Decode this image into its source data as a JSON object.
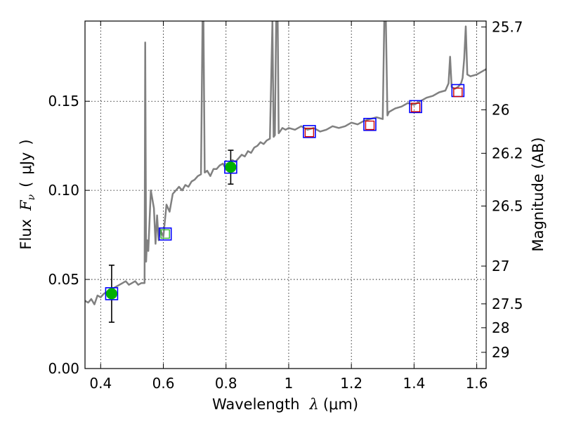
{
  "chart_data": {
    "type": "scatter",
    "title": "",
    "xlabel": {
      "prefix": "Wavelength",
      "symbol": "λ",
      "units": "(μm)"
    },
    "ylabel": {
      "prefix": "Flux",
      "symbol": "F",
      "subscript": "ν",
      "open": "(",
      "units": "μJy",
      "close": ")"
    },
    "y2label": "Magnitude (AB)",
    "xlim": [
      0.35,
      1.63
    ],
    "ylim": [
      0.0,
      0.195
    ],
    "grid": true,
    "x_ticks": [
      0.4,
      0.6,
      0.8,
      1.0,
      1.2,
      1.4,
      1.6
    ],
    "x_tick_labels": [
      "0.4",
      "0.6",
      "0.8",
      "1",
      "1.2",
      "1.4",
      "1.6"
    ],
    "y_ticks": [
      0.0,
      0.05,
      0.1,
      0.15
    ],
    "y_tick_labels": [
      "0.00",
      "0.05",
      "0.10",
      "0.15"
    ],
    "y2_ticks": [
      {
        "label": "25.7",
        "flux": 0.1917
      },
      {
        "label": "26",
        "flux": 0.1452
      },
      {
        "label": "26.2",
        "flux": 0.1208
      },
      {
        "label": "26.5",
        "flux": 0.0912
      },
      {
        "label": "27",
        "flux": 0.0575
      },
      {
        "label": "27.5",
        "flux": 0.0363
      },
      {
        "label": "28",
        "flux": 0.0229
      },
      {
        "label": "29",
        "flux": 0.0091
      }
    ],
    "series": [
      {
        "name": "model spectrum",
        "kind": "line",
        "color": "#808080",
        "x": [
          0.35,
          0.36,
          0.37,
          0.38,
          0.39,
          0.4,
          0.41,
          0.42,
          0.43,
          0.44,
          0.45,
          0.46,
          0.47,
          0.48,
          0.49,
          0.5,
          0.51,
          0.52,
          0.53,
          0.54,
          0.542,
          0.545,
          0.548,
          0.552,
          0.56,
          0.57,
          0.575,
          0.58,
          0.585,
          0.59,
          0.6,
          0.61,
          0.62,
          0.63,
          0.64,
          0.65,
          0.66,
          0.67,
          0.68,
          0.69,
          0.7,
          0.71,
          0.72,
          0.725,
          0.728,
          0.732,
          0.74,
          0.75,
          0.76,
          0.77,
          0.78,
          0.79,
          0.8,
          0.81,
          0.82,
          0.83,
          0.84,
          0.85,
          0.86,
          0.87,
          0.88,
          0.89,
          0.9,
          0.91,
          0.92,
          0.93,
          0.94,
          0.948,
          0.952,
          0.956,
          0.96,
          0.965,
          0.968,
          0.972,
          0.976,
          0.98,
          0.99,
          1.0,
          1.02,
          1.04,
          1.06,
          1.08,
          1.1,
          1.12,
          1.14,
          1.16,
          1.18,
          1.2,
          1.22,
          1.24,
          1.26,
          1.28,
          1.3,
          1.305,
          1.31,
          1.315,
          1.32,
          1.34,
          1.36,
          1.38,
          1.4,
          1.42,
          1.44,
          1.46,
          1.48,
          1.5,
          1.51,
          1.515,
          1.52,
          1.53,
          1.54,
          1.55,
          1.555,
          1.56,
          1.565,
          1.57,
          1.58,
          1.6,
          1.62,
          1.63
        ],
        "y": [
          0.038,
          0.037,
          0.039,
          0.036,
          0.041,
          0.04,
          0.042,
          0.043,
          0.044,
          0.045,
          0.046,
          0.047,
          0.048,
          0.049,
          0.047,
          0.048,
          0.049,
          0.047,
          0.048,
          0.048,
          0.183,
          0.06,
          0.072,
          0.066,
          0.1,
          0.09,
          0.07,
          0.086,
          0.072,
          0.078,
          0.074,
          0.092,
          0.088,
          0.098,
          0.1,
          0.102,
          0.1,
          0.103,
          0.102,
          0.105,
          0.106,
          0.108,
          0.109,
          0.195,
          0.195,
          0.11,
          0.111,
          0.108,
          0.112,
          0.112,
          0.114,
          0.115,
          0.112,
          0.114,
          0.117,
          0.116,
          0.118,
          0.12,
          0.119,
          0.122,
          0.121,
          0.124,
          0.125,
          0.127,
          0.126,
          0.128,
          0.129,
          0.195,
          0.13,
          0.131,
          0.195,
          0.195,
          0.132,
          0.133,
          0.134,
          0.135,
          0.134,
          0.135,
          0.134,
          0.136,
          0.134,
          0.135,
          0.133,
          0.134,
          0.136,
          0.135,
          0.136,
          0.138,
          0.137,
          0.139,
          0.14,
          0.141,
          0.14,
          0.195,
          0.195,
          0.142,
          0.144,
          0.146,
          0.147,
          0.149,
          0.148,
          0.15,
          0.152,
          0.153,
          0.155,
          0.156,
          0.16,
          0.175,
          0.158,
          0.157,
          0.158,
          0.16,
          0.163,
          0.174,
          0.192,
          0.165,
          0.164,
          0.165,
          0.167,
          0.168
        ]
      },
      {
        "name": "observed photometry",
        "kind": "points",
        "marker": "circle",
        "color": "#00b000",
        "points": [
          {
            "x": 0.435,
            "y": 0.042,
            "yerr": 0.016
          },
          {
            "x": 0.815,
            "y": 0.113,
            "yerr": 0.0095
          }
        ]
      },
      {
        "name": "model photometry",
        "kind": "points",
        "marker": "square",
        "color": "#0000ff",
        "points": [
          {
            "x": 0.435,
            "y": 0.042
          },
          {
            "x": 0.606,
            "y": 0.0755
          },
          {
            "x": 0.815,
            "y": 0.113
          },
          {
            "x": 1.066,
            "y": 0.133
          },
          {
            "x": 1.259,
            "y": 0.137
          },
          {
            "x": 1.405,
            "y": 0.147
          },
          {
            "x": 1.54,
            "y": 0.156
          }
        ]
      },
      {
        "name": "filter measurements",
        "kind": "points",
        "marker": "square-open",
        "color": "#d00000",
        "points": [
          {
            "x": 1.066,
            "y": 0.1325,
            "edge": "#d00000"
          },
          {
            "x": 1.259,
            "y": 0.1365,
            "edge": "#d00000"
          },
          {
            "x": 1.405,
            "y": 0.1465,
            "edge": "#d00000"
          },
          {
            "x": 1.54,
            "y": 0.155,
            "edge": "#d00000"
          },
          {
            "x": 0.606,
            "y": 0.0755,
            "edge": "#30b030"
          }
        ]
      }
    ]
  }
}
